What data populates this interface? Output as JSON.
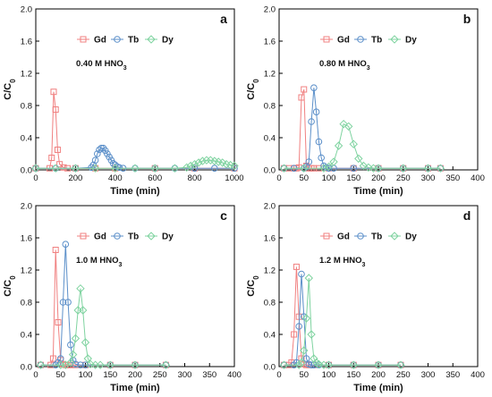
{
  "chart_data": [
    {
      "type": "line",
      "panel_label": "a",
      "annotation": "0.40 M HNO",
      "annotation_sub": "3",
      "xlabel": "Time (min)",
      "ylabel": "C/C",
      "ylabel_sub": "0",
      "xlim": [
        0,
        1000
      ],
      "ylim": [
        0,
        2.0
      ],
      "xticks": [
        0,
        200,
        400,
        600,
        800,
        1000
      ],
      "yticks": [
        0.0,
        0.4,
        0.8,
        1.2,
        1.6,
        2.0
      ],
      "legend_position": "top-center",
      "grid": false,
      "series": [
        {
          "name": "Gd",
          "color": "#f08080",
          "marker": "square",
          "x": [
            0,
            70,
            80,
            90,
            100,
            110,
            120,
            140,
            160,
            200,
            300,
            400,
            600,
            800,
            1000
          ],
          "y": [
            0.02,
            0.02,
            0.15,
            0.97,
            0.75,
            0.25,
            0.07,
            0.03,
            0.02,
            0.02,
            0.02,
            0.02,
            0.02,
            0.02,
            0.02
          ]
        },
        {
          "name": "Tb",
          "color": "#5b8fc9",
          "marker": "circle",
          "x": [
            0,
            100,
            200,
            280,
            290,
            300,
            310,
            320,
            330,
            340,
            350,
            360,
            370,
            380,
            390,
            400,
            410,
            420,
            440,
            500,
            600,
            700,
            800,
            900,
            1000
          ],
          "y": [
            0.02,
            0.02,
            0.02,
            0.03,
            0.06,
            0.12,
            0.2,
            0.25,
            0.27,
            0.27,
            0.24,
            0.2,
            0.16,
            0.12,
            0.08,
            0.06,
            0.04,
            0.03,
            0.02,
            0.02,
            0.02,
            0.02,
            0.02,
            0.02,
            0.02
          ]
        },
        {
          "name": "Dy",
          "color": "#7fd3a0",
          "marker": "diamond",
          "x": [
            0,
            100,
            200,
            300,
            400,
            500,
            600,
            700,
            760,
            780,
            800,
            820,
            840,
            860,
            880,
            900,
            920,
            940,
            960,
            980,
            1000
          ],
          "y": [
            0.02,
            0.02,
            0.02,
            0.02,
            0.02,
            0.02,
            0.02,
            0.02,
            0.03,
            0.05,
            0.07,
            0.09,
            0.11,
            0.12,
            0.12,
            0.11,
            0.1,
            0.09,
            0.07,
            0.06,
            0.05
          ]
        }
      ]
    },
    {
      "type": "line",
      "panel_label": "b",
      "annotation": "0.80 M HNO",
      "annotation_sub": "3",
      "xlabel": "Time (min)",
      "ylabel": "C/C",
      "ylabel_sub": "0",
      "xlim": [
        0,
        400
      ],
      "ylim": [
        0,
        2.0
      ],
      "xticks": [
        0,
        50,
        100,
        150,
        200,
        250,
        300,
        350,
        400
      ],
      "yticks": [
        0.0,
        0.4,
        0.8,
        1.2,
        1.6,
        2.0
      ],
      "legend_position": "top-center",
      "grid": false,
      "series": [
        {
          "name": "Gd",
          "color": "#f08080",
          "marker": "square",
          "x": [
            10,
            20,
            30,
            35,
            40,
            45,
            50,
            55,
            60,
            65,
            70,
            80,
            100,
            150,
            200,
            250,
            300,
            325
          ],
          "y": [
            0.02,
            0.02,
            0.02,
            0.02,
            0.03,
            0.9,
            1.0,
            0.05,
            0.02,
            0.02,
            0.02,
            0.02,
            0.02,
            0.02,
            0.02,
            0.02,
            0.02,
            0.02
          ]
        },
        {
          "name": "Tb",
          "color": "#5b8fc9",
          "marker": "circle",
          "x": [
            10,
            30,
            50,
            55,
            60,
            65,
            70,
            75,
            80,
            85,
            90,
            95,
            100,
            110,
            150,
            200,
            250,
            300,
            325
          ],
          "y": [
            0.02,
            0.02,
            0.02,
            0.04,
            0.1,
            0.6,
            1.02,
            0.72,
            0.35,
            0.15,
            0.05,
            0.03,
            0.02,
            0.02,
            0.02,
            0.02,
            0.02,
            0.02,
            0.02
          ]
        },
        {
          "name": "Dy",
          "color": "#7fd3a0",
          "marker": "diamond",
          "x": [
            10,
            50,
            90,
            100,
            110,
            120,
            130,
            140,
            150,
            160,
            170,
            180,
            190,
            200,
            250,
            300,
            325
          ],
          "y": [
            0.02,
            0.02,
            0.02,
            0.04,
            0.1,
            0.3,
            0.57,
            0.54,
            0.32,
            0.14,
            0.05,
            0.03,
            0.02,
            0.02,
            0.02,
            0.02,
            0.02
          ]
        }
      ]
    },
    {
      "type": "line",
      "panel_label": "c",
      "annotation": "1.0 M HNO",
      "annotation_sub": "3",
      "xlabel": "Time (min)",
      "ylabel": "C/C",
      "ylabel_sub": "0",
      "xlim": [
        0,
        400
      ],
      "ylim": [
        0,
        2.0
      ],
      "xticks": [
        0,
        50,
        100,
        150,
        200,
        250,
        300,
        350,
        400
      ],
      "yticks": [
        0.0,
        0.4,
        0.8,
        1.2,
        1.6,
        2.0
      ],
      "legend_position": "top-center",
      "grid": false,
      "series": [
        {
          "name": "Gd",
          "color": "#f08080",
          "marker": "square",
          "x": [
            10,
            30,
            35,
            40,
            45,
            50,
            55,
            60,
            65,
            70,
            80,
            100,
            150,
            200,
            262
          ],
          "y": [
            0.02,
            0.02,
            0.1,
            1.45,
            0.55,
            0.08,
            0.03,
            0.02,
            0.02,
            0.02,
            0.02,
            0.02,
            0.02,
            0.02,
            0.02
          ]
        },
        {
          "name": "Tb",
          "color": "#5b8fc9",
          "marker": "circle",
          "x": [
            10,
            40,
            45,
            50,
            55,
            60,
            65,
            70,
            75,
            80,
            90,
            100,
            150,
            200,
            262
          ],
          "y": [
            0.02,
            0.02,
            0.05,
            0.1,
            0.8,
            1.52,
            0.8,
            0.27,
            0.08,
            0.03,
            0.02,
            0.02,
            0.02,
            0.02,
            0.02
          ]
        },
        {
          "name": "Dy",
          "color": "#7fd3a0",
          "marker": "diamond",
          "x": [
            10,
            50,
            60,
            70,
            75,
            80,
            85,
            90,
            95,
            100,
            105,
            110,
            120,
            130,
            150,
            200,
            262
          ],
          "y": [
            0.02,
            0.02,
            0.02,
            0.05,
            0.15,
            0.35,
            0.7,
            0.97,
            0.7,
            0.3,
            0.1,
            0.03,
            0.02,
            0.02,
            0.02,
            0.02,
            0.02
          ]
        }
      ]
    },
    {
      "type": "line",
      "panel_label": "d",
      "annotation": "1.2 M HNO",
      "annotation_sub": "3",
      "xlabel": "Time (min)",
      "ylabel": "C/C",
      "ylabel_sub": "0",
      "xlim": [
        0,
        400
      ],
      "ylim": [
        0,
        2.0
      ],
      "xticks": [
        0,
        50,
        100,
        150,
        200,
        250,
        300,
        350,
        400
      ],
      "yticks": [
        0.0,
        0.4,
        0.8,
        1.2,
        1.6,
        2.0
      ],
      "legend_position": "top-center",
      "grid": false,
      "series": [
        {
          "name": "Gd",
          "color": "#f08080",
          "marker": "square",
          "x": [
            10,
            20,
            25,
            30,
            35,
            40,
            45,
            50,
            55,
            60,
            70,
            100,
            150,
            200,
            245
          ],
          "y": [
            0.02,
            0.02,
            0.05,
            0.4,
            1.24,
            0.62,
            0.1,
            0.03,
            0.02,
            0.02,
            0.02,
            0.02,
            0.02,
            0.02,
            0.02
          ]
        },
        {
          "name": "Tb",
          "color": "#5b8fc9",
          "marker": "circle",
          "x": [
            10,
            30,
            35,
            40,
            45,
            50,
            55,
            60,
            65,
            70,
            80,
            100,
            150,
            200,
            245
          ],
          "y": [
            0.02,
            0.02,
            0.05,
            0.5,
            1.15,
            0.62,
            0.1,
            0.03,
            0.02,
            0.02,
            0.02,
            0.02,
            0.02,
            0.02,
            0.02
          ]
        },
        {
          "name": "Dy",
          "color": "#7fd3a0",
          "marker": "diamond",
          "x": [
            10,
            40,
            45,
            50,
            55,
            60,
            65,
            70,
            75,
            80,
            90,
            100,
            150,
            200,
            245
          ],
          "y": [
            0.02,
            0.02,
            0.05,
            0.2,
            0.6,
            1.1,
            0.4,
            0.1,
            0.05,
            0.03,
            0.02,
            0.02,
            0.02,
            0.02,
            0.02
          ]
        }
      ]
    }
  ]
}
